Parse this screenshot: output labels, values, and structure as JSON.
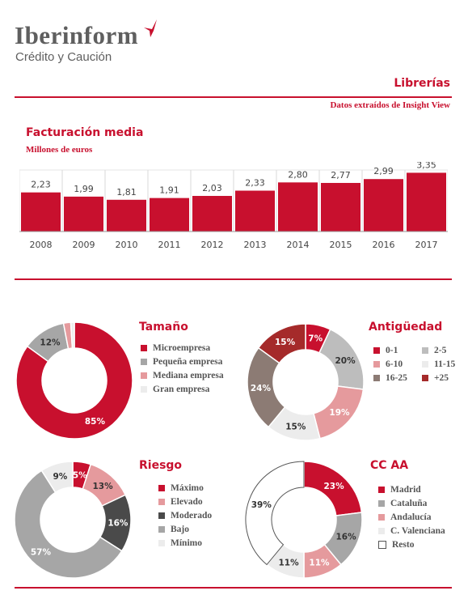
{
  "header": {
    "brand": "Iberinform",
    "brand_sub": "Crédito y Caución",
    "section": "Librerías",
    "source": "Datos extraídos de Insight View"
  },
  "colors": {
    "accent": "#c8102e",
    "grey": "#a6a6a6",
    "pink": "#e59a9d",
    "light": "#ececec",
    "dark": "#4a4a4a",
    "taupe": "#8c7b74",
    "darkred": "#a52a2a"
  },
  "chart_data": [
    {
      "type": "bar",
      "title": "Facturación media",
      "subtitle": "Millones de euros",
      "categories": [
        "2008",
        "2009",
        "2010",
        "2011",
        "2012",
        "2013",
        "2014",
        "2015",
        "2016",
        "2017"
      ],
      "values": [
        2.23,
        1.99,
        1.81,
        1.91,
        2.03,
        2.33,
        2.8,
        2.77,
        2.99,
        3.35
      ],
      "value_labels": [
        "2,23",
        "1,99",
        "1,81",
        "1,91",
        "2,03",
        "2,33",
        "2,80",
        "2,77",
        "2,99",
        "3,35"
      ],
      "color": "#c8102e"
    },
    {
      "type": "pie",
      "title": "Tamaño",
      "legend_layout": "list",
      "slices": [
        {
          "label": "Microempresa",
          "value": 85,
          "color": "#c8102e",
          "text": "85%",
          "text_color": "#ffffff"
        },
        {
          "label": "Pequeña empresa",
          "value": 12,
          "color": "#a6a6a6",
          "text": "12%",
          "text_color": "#333333"
        },
        {
          "label": "Mediana empresa",
          "value": 2,
          "color": "#e59a9d",
          "text": "",
          "text_color": "#333333"
        },
        {
          "label": "Gran empresa",
          "value": 1,
          "color": "#ececec",
          "text": "",
          "text_color": "#333333"
        }
      ]
    },
    {
      "type": "pie",
      "title": "Antigüedad",
      "legend_layout": "grid",
      "slices": [
        {
          "label": "0-1",
          "value": 7,
          "color": "#c8102e",
          "text": "7%",
          "text_color": "#ffffff"
        },
        {
          "label": "2-5",
          "value": 20,
          "color": "#bdbdbd",
          "text": "20%",
          "text_color": "#333333"
        },
        {
          "label": "6-10",
          "value": 19,
          "color": "#e59a9d",
          "text": "19%",
          "text_color": "#ffffff"
        },
        {
          "label": "11-15",
          "value": 15,
          "color": "#ececec",
          "text": "15%",
          "text_color": "#333333"
        },
        {
          "label": "16-25",
          "value": 24,
          "color": "#8c7b74",
          "text": "24%",
          "text_color": "#ffffff"
        },
        {
          "label": "+25",
          "value": 15,
          "color": "#a52a2a",
          "text": "15%",
          "text_color": "#ffffff"
        }
      ]
    },
    {
      "type": "pie",
      "title": "Riesgo",
      "legend_layout": "list",
      "slices": [
        {
          "label": "Máximo",
          "value": 5,
          "color": "#c8102e",
          "text": "5%",
          "text_color": "#ffffff"
        },
        {
          "label": "Elevado",
          "value": 13,
          "color": "#e59a9d",
          "text": "13%",
          "text_color": "#333333"
        },
        {
          "label": "Moderado",
          "value": 16,
          "color": "#4a4a4a",
          "text": "16%",
          "text_color": "#ffffff"
        },
        {
          "label": "Bajo",
          "value": 57,
          "color": "#a6a6a6",
          "text": "57%",
          "text_color": "#ffffff"
        },
        {
          "label": "Mínimo",
          "value": 9,
          "color": "#ececec",
          "text": "9%",
          "text_color": "#333333"
        }
      ]
    },
    {
      "type": "pie",
      "title": "CC AA",
      "legend_layout": "list",
      "slices": [
        {
          "label": "Madrid",
          "value": 23,
          "color": "#c8102e",
          "text": "23%",
          "text_color": "#ffffff"
        },
        {
          "label": "Cataluña",
          "value": 16,
          "color": "#a6a6a6",
          "text": "16%",
          "text_color": "#333333"
        },
        {
          "label": "Andalucía",
          "value": 11,
          "color": "#e59a9d",
          "text": "11%",
          "text_color": "#ffffff"
        },
        {
          "label": "C. Valenciana",
          "value": 11,
          "color": "#ececec",
          "text": "11%",
          "text_color": "#333333"
        },
        {
          "label": "Resto",
          "value": 39,
          "color": "#ffffff",
          "text": "39%",
          "text_color": "#333333"
        }
      ]
    }
  ]
}
